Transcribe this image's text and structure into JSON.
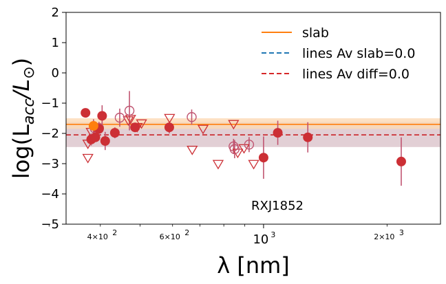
{
  "chart_data": {
    "type": "scatter",
    "title": "",
    "xlabel": "λ [nm]",
    "ylabel": "log(L_acc/L_⊙)",
    "xscale": "log",
    "xlim": [
      330,
      2700
    ],
    "ylim": [
      -5,
      2
    ],
    "y_ticks": [
      2,
      1,
      0,
      -1,
      -2,
      -3,
      -4,
      -5
    ],
    "x_major_ticks": [
      {
        "value": 1000,
        "label": "10",
        "exp": "3"
      }
    ],
    "x_minor_ticks": [
      300,
      400,
      500,
      600,
      700,
      800,
      900,
      2000
    ],
    "x_minor_labels": [
      {
        "value": 400,
        "base": "4×10",
        "exp": "2"
      },
      {
        "value": 600,
        "base": "6×10",
        "exp": "2"
      },
      {
        "value": 2000,
        "base": "2×10",
        "exp": "3"
      }
    ],
    "annotation": "RXJ1852",
    "colors": {
      "slab": "#ff7f0e",
      "lines_slab": "#1f77b4",
      "lines_diff": "#d62728",
      "points": "#cc2f35",
      "errorbar": "#c05470",
      "band_slab": "#fcd9b5",
      "band_diff": "#ddc7ce"
    },
    "legend": {
      "placement": "upper right",
      "entries": [
        "slab",
        "lines Av slab=0.0",
        "lines Av diff=0.0"
      ]
    },
    "slab": {
      "value": -1.7,
      "band": [
        -1.85,
        -1.5
      ]
    },
    "lines_slab": {
      "value": -2.05
    },
    "lines_diff": {
      "value": -2.05,
      "band": [
        -2.45,
        -1.62
      ]
    },
    "slab_point": {
      "x": 385,
      "y": -1.75,
      "err": 0.22
    },
    "filled_points": [
      {
        "x": 368,
        "y": -1.32,
        "err": 0.1
      },
      {
        "x": 380,
        "y": -2.2,
        "err": 0.2
      },
      {
        "x": 389,
        "y": -2.13,
        "err": 0.15
      },
      {
        "x": 397,
        "y": -1.85,
        "err": 0.15
      },
      {
        "x": 404,
        "y": -1.42,
        "err": 0.35
      },
      {
        "x": 411,
        "y": -2.25,
        "err": 0.3
      },
      {
        "x": 434,
        "y": -1.98,
        "err": 0.18
      },
      {
        "x": 486,
        "y": -1.8,
        "err": 0.1
      },
      {
        "x": 589,
        "y": -1.8,
        "err": 0.2
      },
      {
        "x": 1000,
        "y": -2.8,
        "err": 0.7
      },
      {
        "x": 1083,
        "y": -1.98,
        "err": 0.4
      },
      {
        "x": 1282,
        "y": -2.13,
        "err": 0.5
      },
      {
        "x": 2166,
        "y": -2.93,
        "err": 0.8
      }
    ],
    "open_circles": [
      {
        "x": 388,
        "y": -1.84,
        "err": 0.2
      },
      {
        "x": 397,
        "y": -1.82,
        "err": 0.2
      },
      {
        "x": 446,
        "y": -1.48,
        "err": 0.3
      },
      {
        "x": 471,
        "y": -1.25,
        "err": 0.65
      },
      {
        "x": 668,
        "y": -1.46,
        "err": 0.25
      },
      {
        "x": 845,
        "y": -2.43,
        "err": 0.25
      },
      {
        "x": 850,
        "y": -2.52,
        "err": 0.3
      },
      {
        "x": 922,
        "y": -2.37,
        "err": 0.25
      }
    ],
    "triangles": [
      {
        "x": 373,
        "y": -2.35
      },
      {
        "x": 373,
        "y": -2.82
      },
      {
        "x": 380,
        "y": -1.96
      },
      {
        "x": 468,
        "y": -1.58
      },
      {
        "x": 474,
        "y": -1.53
      },
      {
        "x": 492,
        "y": -1.8
      },
      {
        "x": 504,
        "y": -1.68
      },
      {
        "x": 590,
        "y": -1.5
      },
      {
        "x": 670,
        "y": -2.55
      },
      {
        "x": 712,
        "y": -1.86
      },
      {
        "x": 775,
        "y": -3.02
      },
      {
        "x": 845,
        "y": -1.7
      },
      {
        "x": 865,
        "y": -2.65
      },
      {
        "x": 896,
        "y": -2.5
      },
      {
        "x": 946,
        "y": -3.02
      }
    ]
  }
}
